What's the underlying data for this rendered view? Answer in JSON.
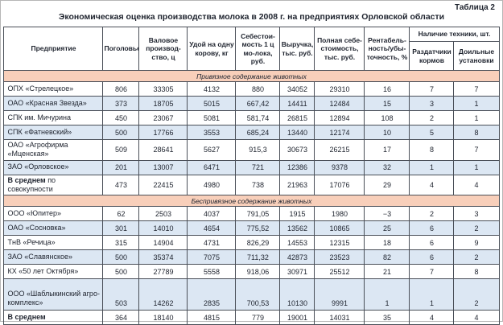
{
  "page": {
    "table_label": "Таблица 2",
    "title": "Экономическая оценка производства молока в 2008 г. на предприятиях Орловской области"
  },
  "colors": {
    "text": "#1e232e",
    "border": "#4a4f58",
    "section_band_bg": "#f8cfba",
    "stripe_row_bg": "#dce7f3"
  },
  "table": {
    "columns": [
      "Предприятие",
      "Поголовье",
      "Валовое производ-ство, ц",
      "Удой на одну корову, кг",
      "Себестои-мость 1 ц мо-лока, руб.",
      "Выручка, тыс. руб.",
      "Полная себе-стоимость, тыс. руб.",
      "Рентабель-ность/убы-точность, %"
    ],
    "equipment_group": {
      "label": "Наличие техники, шт.",
      "subcolumns": [
        "Раздатчики кормов",
        "Доильные установки"
      ]
    },
    "sections": [
      {
        "band": "Привязное содержание животных",
        "rows": [
          {
            "name": "ОПХ «Стрелецкое»",
            "values": [
              "806",
              "33305",
              "4132",
              "880",
              "34052",
              "29310",
              "16",
              "7",
              "7"
            ]
          },
          {
            "name": "ОАО «Красная Звезда»",
            "values": [
              "373",
              "18705",
              "5015",
              "667,42",
              "14411",
              "12484",
              "15",
              "3",
              "1"
            ]
          },
          {
            "name": "СПК им. Мичурина",
            "values": [
              "450",
              "23067",
              "5081",
              "581,74",
              "26815",
              "12894",
              "108",
              "2",
              "1"
            ]
          },
          {
            "name": "СПК «Фатневский»",
            "values": [
              "500",
              "17766",
              "3553",
              "685,24",
              "13440",
              "12174",
              "10",
              "5",
              "8"
            ]
          },
          {
            "name": "ОАО «Агрофирма «Мценская»",
            "values": [
              "509",
              "28641",
              "5627",
              "915,3",
              "30673",
              "26215",
              "17",
              "8",
              "7"
            ]
          },
          {
            "name": "ЗАО «Орловское»",
            "values": [
              "201",
              "13007",
              "6471",
              "721",
              "12386",
              "9378",
              "32",
              "1",
              "1"
            ]
          },
          {
            "name_bold": "В среднем",
            "name_rest": "по совокупности",
            "values": [
              "473",
              "22415",
              "4980",
              "738",
              "21963",
              "17076",
              "29",
              "4",
              "4"
            ]
          }
        ]
      },
      {
        "band": "Беспривязное содержание животных",
        "rows": [
          {
            "name": "ООО «Юпитер»",
            "values": [
              "62",
              "2503",
              "4037",
              "791,05",
              "1915",
              "1980",
              "−3",
              "2",
              "3"
            ]
          },
          {
            "name": "ОАО «Сосновка»",
            "values": [
              "301",
              "14010",
              "4654",
              "775,52",
              "13562",
              "10865",
              "25",
              "6",
              "2"
            ]
          },
          {
            "name": "ТнВ «Речица»",
            "values": [
              "315",
              "14904",
              "4731",
              "826,29",
              "14553",
              "12315",
              "18",
              "6",
              "9"
            ]
          },
          {
            "name": "ЗАО «Славянское»",
            "values": [
              "500",
              "35374",
              "7075",
              "711,32",
              "42873",
              "23523",
              "82",
              "6",
              "2"
            ]
          },
          {
            "name": "КХ «50 лет Октября»",
            "values": [
              "500",
              "27789",
              "5558",
              "918,06",
              "30971",
              "25512",
              "21",
              "7",
              "8"
            ]
          },
          {
            "name": "ООО «Шаблыкинский агро-комплекс»",
            "tall": true,
            "values": [
              "503",
              "14262",
              "2835",
              "700,53",
              "10130",
              "9991",
              "1",
              "1",
              "2"
            ]
          },
          {
            "name_bold": "В среднем",
            "name_rest": "",
            "values": [
              "364",
              "18140",
              "4815",
              "779",
              "19001",
              "14031",
              "35",
              "4",
              "4"
            ]
          }
        ]
      }
    ]
  }
}
